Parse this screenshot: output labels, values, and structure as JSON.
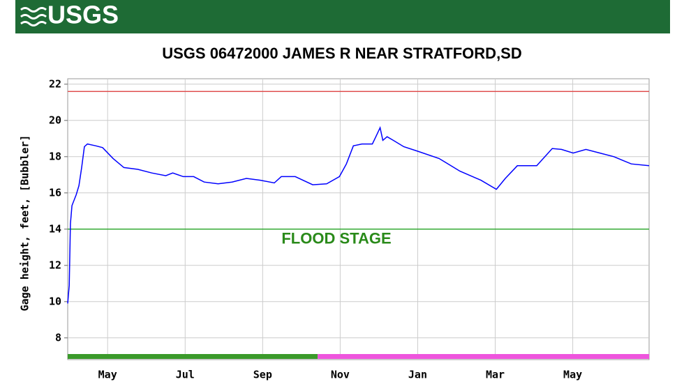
{
  "logo": "USGS",
  "chart_data": {
    "type": "line",
    "title": "USGS 06472000 JAMES R NEAR STRATFORD,SD",
    "y_label": "Gage height, feet, [Bubbler]",
    "xlim": [
      -1.03,
      13.97
    ],
    "xticks": [
      {
        "value": 0,
        "label": "May"
      },
      {
        "value": 2,
        "label": "Jul"
      },
      {
        "value": 4,
        "label": "Sep"
      },
      {
        "value": 6,
        "label": "Nov"
      },
      {
        "value": 8,
        "label": "Jan"
      },
      {
        "value": 10,
        "label": "Mar"
      },
      {
        "value": 12,
        "label": "May"
      }
    ],
    "ylim": [
      6.8,
      22.3
    ],
    "yticks": [
      8,
      10,
      12,
      14,
      16,
      18,
      20,
      22
    ],
    "grid": true,
    "series": [
      {
        "color": "#0000ff",
        "x": [
          -1.03,
          -0.99,
          -0.96,
          -0.92,
          -0.81,
          -0.74,
          -0.67,
          -0.6,
          -0.52,
          -0.31,
          -0.13,
          0.14,
          0.42,
          0.78,
          1.14,
          1.5,
          1.68,
          1.95,
          2.22,
          2.49,
          2.85,
          3.21,
          3.58,
          3.94,
          4.3,
          4.48,
          4.84,
          5.29,
          5.65,
          5.98,
          6.16,
          6.34,
          6.56,
          6.83,
          6.92,
          7.03,
          7.1,
          7.21,
          7.37,
          7.64,
          8.0,
          8.55,
          9.09,
          9.63,
          10.03,
          10.26,
          10.57,
          11.07,
          11.47,
          11.71,
          12.01,
          12.34,
          12.7,
          13.06,
          13.51,
          13.97
        ],
        "values": [
          9.9,
          10.9,
          14.3,
          15.3,
          15.9,
          16.4,
          17.4,
          18.55,
          18.7,
          18.6,
          18.5,
          17.9,
          17.4,
          17.3,
          17.1,
          16.95,
          17.1,
          16.9,
          16.9,
          16.6,
          16.5,
          16.6,
          16.8,
          16.7,
          16.55,
          16.9,
          16.9,
          16.45,
          16.5,
          16.9,
          17.6,
          18.6,
          18.7,
          18.7,
          19.1,
          19.6,
          18.9,
          19.1,
          18.9,
          18.55,
          18.3,
          17.9,
          17.2,
          16.7,
          16.2,
          16.8,
          17.5,
          17.5,
          18.45,
          18.4,
          18.2,
          18.4,
          18.2,
          18.0,
          17.6,
          17.5
        ]
      }
    ],
    "reference_lines": [
      {
        "value": 21.6,
        "color": "#e05050"
      },
      {
        "value": 14,
        "color": "#33aa33",
        "label": "FLOOD STAGE",
        "label_color": "#2a8a1a"
      }
    ],
    "status_bar": [
      {
        "xlim": [
          -1.03,
          5.42
        ],
        "color": "#3a9a2a"
      },
      {
        "xlim": [
          5.42,
          13.97
        ],
        "color": "#ee55dd"
      }
    ]
  }
}
